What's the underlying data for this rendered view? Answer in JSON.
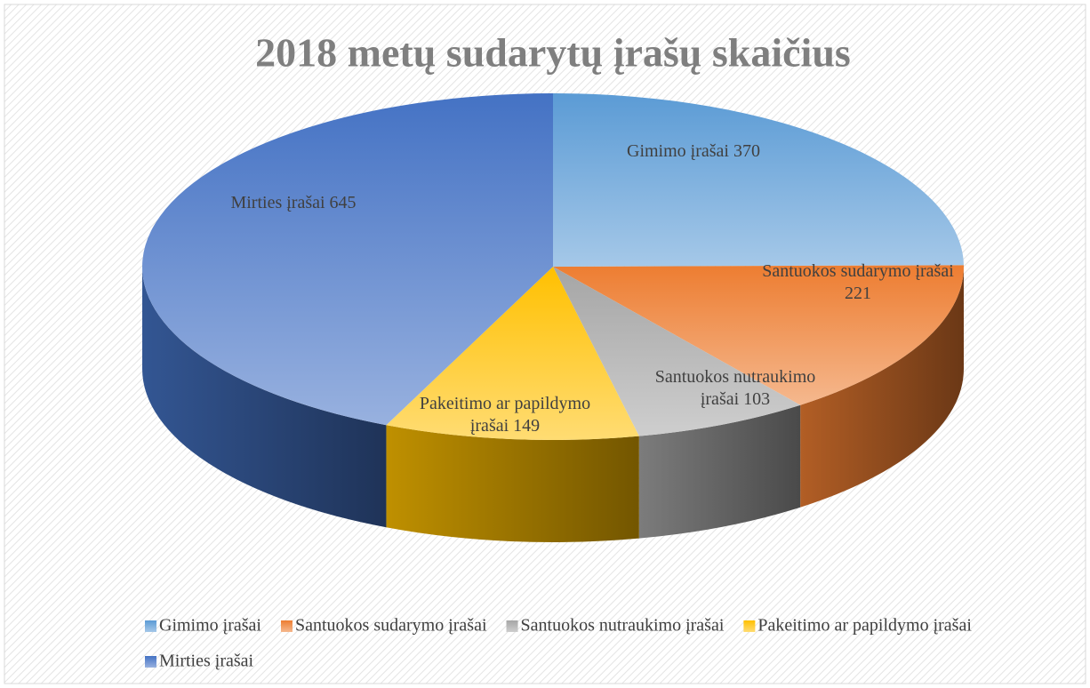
{
  "chart_data": {
    "type": "pie",
    "title": "2018 metų sudarytų įrašų skaičius",
    "categories": [
      "Gimimo įrašai",
      "Santuokos sudarymo įrašai",
      "Santuokos nutraukimo įrašai",
      "Pakeitimo ar papildymo įrašai",
      "Mirties įrašai"
    ],
    "values": [
      370,
      221,
      103,
      149,
      645
    ],
    "colors": [
      "#5b9bd5",
      "#ed7d31",
      "#a5a5a5",
      "#ffc000",
      "#4472c4"
    ],
    "legend": "bottom"
  }
}
